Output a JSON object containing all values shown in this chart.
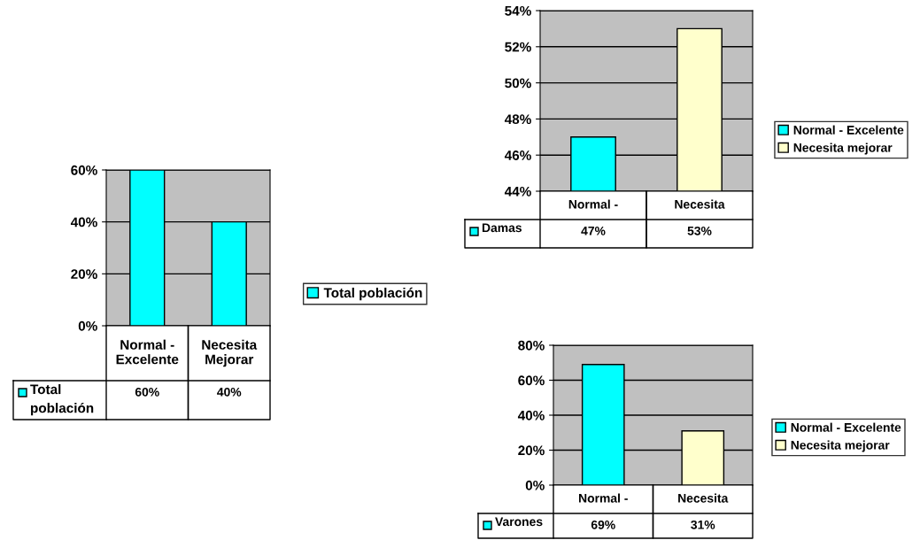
{
  "chart_data": [
    {
      "type": "bar",
      "categories": [
        "Normal -\nExcelente",
        "Necesita\nMejorar"
      ],
      "series": [
        {
          "name": "Total población",
          "color": "#00ffff",
          "values": [
            60,
            40
          ],
          "value_labels": [
            "60%",
            "40%"
          ]
        }
      ],
      "annotations": [
        "Total\npoblación"
      ],
      "ylim": [
        0,
        60
      ],
      "yticks": [
        {
          "value": 0,
          "label": "0%"
        },
        {
          "value": 20,
          "label": "20%"
        },
        {
          "value": 40,
          "label": "40%"
        },
        {
          "value": 60,
          "label": "60%"
        }
      ],
      "grid": "y",
      "legend": "right"
    },
    {
      "type": "bar",
      "stacked": true,
      "categories": [
        "Normal -",
        "Necesita"
      ],
      "series": [
        {
          "name": "Normal - Excelente",
          "color": "#00ffff",
          "values": [
            47,
            null
          ],
          "value_labels": [
            "47%",
            null
          ]
        },
        {
          "name": "Necesita mejorar",
          "color": "#ffffcc",
          "values": [
            null,
            53
          ],
          "value_labels": [
            null,
            "53%"
          ]
        }
      ],
      "annotations": [
        "Damas"
      ],
      "ylim": [
        44,
        54
      ],
      "yticks": [
        {
          "value": 44,
          "label": "44%"
        },
        {
          "value": 46,
          "label": "46%"
        },
        {
          "value": 48,
          "label": "48%"
        },
        {
          "value": 50,
          "label": "50%"
        },
        {
          "value": 52,
          "label": "52%"
        },
        {
          "value": 54,
          "label": "54%"
        }
      ],
      "grid": "y",
      "legend": "right"
    },
    {
      "type": "bar",
      "stacked": true,
      "categories": [
        "Normal -",
        "Necesita"
      ],
      "series": [
        {
          "name": "Normal - Excelente",
          "color": "#00ffff",
          "values": [
            69,
            null
          ],
          "value_labels": [
            "69%",
            null
          ]
        },
        {
          "name": "Necesita mejorar",
          "color": "#ffffcc",
          "values": [
            null,
            31
          ],
          "value_labels": [
            null,
            "31%"
          ]
        }
      ],
      "annotations": [
        "Varones"
      ],
      "ylim": [
        0,
        80
      ],
      "yticks": [
        {
          "value": 0,
          "label": "0%"
        },
        {
          "value": 20,
          "label": "20%"
        },
        {
          "value": 40,
          "label": "40%"
        },
        {
          "value": 60,
          "label": "60%"
        },
        {
          "value": 80,
          "label": "80%"
        }
      ],
      "grid": "y",
      "legend": "right"
    }
  ]
}
